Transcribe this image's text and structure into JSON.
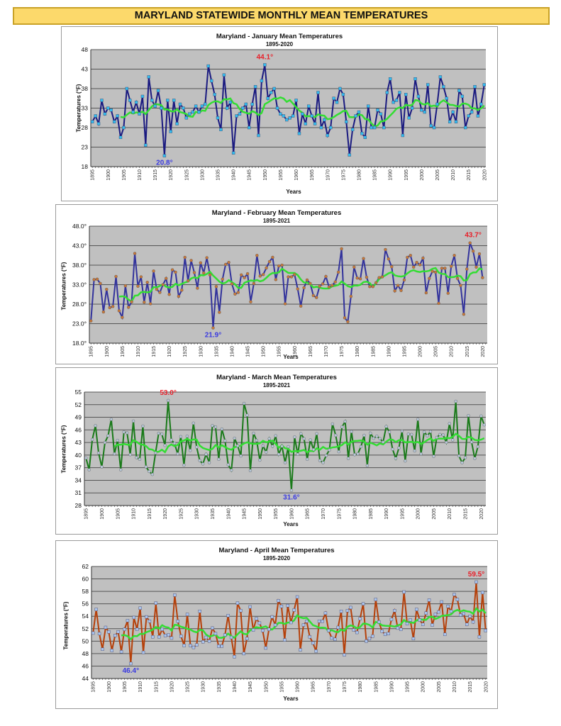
{
  "page_title": "MARYLAND STATEWIDE MONTHLY MEAN TEMPERATURES",
  "colors": {
    "banner_bg": "#fcd96b",
    "plot_bg": "#c0c0c0",
    "trend": "#33dd33",
    "max_label": "#e8202a",
    "min_label": "#3a3ae0"
  },
  "chart_data": [
    {
      "type": "line",
      "title": "Maryland - January Mean Temperatures",
      "subtitle": "1895-2020",
      "xlabel": "Years",
      "ylabel": "Temperatures (°F)",
      "ylim": [
        18,
        48
      ],
      "yticks": [
        18,
        23,
        28,
        33,
        38,
        43,
        48
      ],
      "ytick_labels": [
        "18",
        "23",
        "28",
        "33",
        "38",
        "43",
        "48"
      ],
      "xlim": [
        1895,
        2020
      ],
      "xticks": [
        "1895",
        "1900",
        "1905",
        "1910",
        "1915",
        "1920",
        "1925",
        "1930",
        "1935",
        "1940",
        "1945",
        "1950",
        "1955",
        "1960",
        "1965",
        "1970",
        "1975",
        "1980",
        "1985",
        "1990",
        "1995",
        "2000",
        "2005",
        "2010",
        "2015",
        "2020"
      ],
      "grid": true,
      "line_color": "#1a1a80",
      "marker_color": "#33bbee",
      "marker_shape": "square",
      "start_year": 1895,
      "values": [
        29.5,
        31,
        29,
        35,
        31.5,
        33,
        32.5,
        29.5,
        31,
        25.5,
        28,
        38,
        35,
        32,
        34.5,
        31.5,
        36,
        23.5,
        41,
        35,
        33.5,
        37.5,
        33,
        20.8,
        35,
        27,
        35,
        29,
        34,
        33,
        30.5,
        31.5,
        32,
        33.5,
        32,
        33.5,
        34,
        43.8,
        40,
        36.5,
        30.5,
        27.5,
        41.5,
        33,
        34.5,
        21.5,
        31,
        31.5,
        33,
        34,
        28,
        34,
        38.5,
        26,
        40,
        44.1,
        35.5,
        37,
        38,
        33,
        31.5,
        31,
        30,
        30.5,
        31,
        35,
        26.5,
        31.5,
        29,
        33.5,
        31,
        29,
        37,
        28,
        30,
        26,
        28,
        35.5,
        34.5,
        38,
        36.5,
        29.5,
        21,
        27.5,
        31,
        32,
        26.5,
        25.5,
        33.5,
        28,
        28,
        32.5,
        31.5,
        28,
        37,
        40.5,
        34.5,
        35,
        37,
        26,
        36.5,
        30.5,
        33,
        40.5,
        36,
        32.5,
        32,
        39,
        28.5,
        28,
        34,
        41,
        38.5,
        35.5,
        29.5,
        32,
        29.5,
        37.5,
        36,
        28,
        31,
        32,
        38.5,
        31,
        34,
        39
      ],
      "trend_window": 10,
      "annotations": [
        {
          "label": "44.1°",
          "year": 1950,
          "value": 44.1,
          "kind": "max"
        },
        {
          "label": "20.8°",
          "year": 1918,
          "value": 20.8,
          "kind": "min"
        }
      ]
    },
    {
      "type": "line",
      "title": "Maryland - February Mean Temperatures",
      "subtitle": "1895-2021",
      "xlabel": "Years",
      "ylabel": "Temperatures (°F)",
      "ylim": [
        18,
        48
      ],
      "yticks": [
        18,
        23,
        28,
        33,
        38,
        43,
        48
      ],
      "ytick_labels": [
        "18.0°",
        "23.0°",
        "28.0°",
        "33.0°",
        "38.0°",
        "43.0°",
        "48.0°"
      ],
      "xlim": [
        1895,
        2021
      ],
      "xticks": [
        "1895",
        "1900",
        "1905",
        "1910",
        "1915",
        "1920",
        "1925",
        "1930",
        "1935",
        "1940",
        "1945",
        "1950",
        "1955",
        "1960",
        "1965",
        "1970",
        "1975",
        "1980",
        "1985",
        "1990",
        "1995",
        "2000",
        "2005",
        "2010",
        "2015",
        "2020"
      ],
      "grid": true,
      "line_color": "#33339c",
      "marker_color": "#c8783a",
      "marker_shape": "circle",
      "start_year": 1895,
      "values": [
        23.7,
        34.3,
        34.4,
        33.3,
        26,
        31.8,
        27.1,
        27.4,
        35.1,
        26.3,
        24.6,
        32.7,
        27.2,
        28.6,
        41,
        32.6,
        35,
        28.5,
        33.6,
        28.1,
        36.5,
        31.8,
        31,
        33,
        34.6,
        30.5,
        36.8,
        36.2,
        30,
        31.6,
        40,
        34,
        39.2,
        36.1,
        32.1,
        38.6,
        36,
        39.9,
        35.5,
        21.9,
        32.5,
        25.9,
        34.4,
        38.2,
        38.7,
        33.2,
        30.6,
        31,
        35.5,
        34.8,
        35.8,
        28.6,
        33.3,
        40.5,
        35.2,
        35.6,
        37.3,
        38.9,
        40,
        34.3,
        37.8,
        38,
        28.1,
        35,
        35,
        35.6,
        31.9,
        27.5,
        32.2,
        34.2,
        33.3,
        30.2,
        29.7,
        32.6,
        33.2,
        35.1,
        32.4,
        32.8,
        33.7,
        36.2,
        42.2,
        24.5,
        23.5,
        30,
        37.5,
        34.7,
        34.5,
        39.7,
        34.9,
        32.5,
        32.5,
        33.5,
        34.8,
        35,
        42,
        39.6,
        37.6,
        31.4,
        32.8,
        31.5,
        34.2,
        40,
        40.5,
        37.5,
        38.7,
        38.1,
        39.8,
        30.9,
        34.6,
        36.4,
        36.2,
        28.2,
        37.2,
        37.2,
        30.8,
        37.7,
        40.5,
        34.6,
        32.8,
        25.4,
        37,
        43.7,
        41.6,
        37.5,
        40.9,
        34.8
      ],
      "trend_window": 10,
      "annotations": [
        {
          "label": "43.7°",
          "year": 2017,
          "value": 43.7,
          "kind": "max"
        },
        {
          "label": "21.9°",
          "year": 1934,
          "value": 21.9,
          "kind": "min"
        }
      ]
    },
    {
      "type": "line",
      "title": "Maryland - March Mean Temperatures",
      "subtitle": "1895-2021",
      "xlabel": "Years",
      "ylabel": "Temperatures (°F)",
      "ylim": [
        28,
        55
      ],
      "yticks": [
        28,
        31,
        34,
        37,
        40,
        43,
        46,
        49,
        52,
        55
      ],
      "ytick_labels": [
        "28",
        "31",
        "34",
        "37",
        "40",
        "43",
        "46",
        "49",
        "52",
        "55"
      ],
      "xlim": [
        1895,
        2021
      ],
      "xticks": [
        "1895",
        "1900",
        "1905",
        "1910",
        "1915",
        "1920",
        "1925",
        "1930",
        "1935",
        "1940",
        "1945",
        "1950",
        "1955",
        "1960",
        "1965",
        "1970",
        "1975",
        "1980",
        "1985",
        "1990",
        "1995",
        "2000",
        "2005",
        "2010",
        "2015",
        "2020"
      ],
      "grid": true,
      "line_color": "#1a7a1a",
      "marker_color": "#b8c8d8",
      "marker_shape": "circle",
      "start_year": 1895,
      "values": [
        39.3,
        36.5,
        43.7,
        47,
        40.5,
        37.2,
        43,
        44.6,
        48.5,
        40.3,
        43.5,
        36.5,
        45.5,
        45.3,
        40.1,
        48.1,
        39.4,
        39,
        46.9,
        37.2,
        36.1,
        35.4,
        40.5,
        45.2,
        45,
        42.3,
        53,
        43.6,
        42.8,
        40.3,
        44.4,
        37.6,
        44.5,
        41.1,
        47.6,
        41.9,
        38.7,
        37.9,
        40.2,
        38.2,
        47,
        46.7,
        39,
        46.2,
        43.4,
        37.7,
        36.4,
        44,
        42.2,
        39.8,
        52.3,
        49.5,
        36.3,
        45.2,
        43.5,
        38.8,
        42.2,
        40.7,
        43.9,
        42.1,
        44.6,
        40.2,
        42.1,
        38.2,
        42,
        31.6,
        44.3,
        40.2,
        45.1,
        43.9,
        39,
        43.6,
        41.3,
        45.1,
        38.7,
        38.2,
        39.9,
        41.2,
        47.4,
        44.7,
        40.8,
        46.7,
        48,
        39.2,
        45.6,
        40.1,
        40.3,
        42,
        44.7,
        37.5,
        45.2,
        44,
        44.5,
        43.9,
        43.1,
        46.8,
        45.5,
        41.4,
        39.2,
        41.7,
        45.7,
        38.6,
        45,
        44.9,
        41,
        48.5,
        40.3,
        45.5,
        44.6,
        45.6,
        39.7,
        44.2,
        44.9,
        44.8,
        43,
        47.5,
        43.6,
        52.8,
        39.8,
        38.2,
        39.4,
        49.4,
        43.1,
        39.2,
        42,
        49.3,
        47.2
      ],
      "trend_window": 10,
      "annotations": [
        {
          "label": "53.0°",
          "year": 1921,
          "value": 53.0,
          "kind": "max"
        },
        {
          "label": "31.6°",
          "year": 1960,
          "value": 31.6,
          "kind": "min"
        }
      ]
    },
    {
      "type": "line",
      "title": "Maryland - April Mean Temperatures",
      "subtitle": "1895-2020",
      "xlabel": "Years",
      "ylabel": "Temperatures (°F)",
      "ylim": [
        44,
        62
      ],
      "yticks": [
        44,
        46,
        48,
        50,
        52,
        54,
        56,
        58,
        60,
        62
      ],
      "ytick_labels": [
        "44",
        "46",
        "48",
        "50",
        "52",
        "54",
        "56",
        "58",
        "60",
        "62"
      ],
      "xlim": [
        1895,
        2020
      ],
      "xticks": [
        "1895",
        "1900",
        "1905",
        "1910",
        "1915",
        "1920",
        "1925",
        "1930",
        "1935",
        "1940",
        "1945",
        "1950",
        "1955",
        "1960",
        "1965",
        "1970",
        "1975",
        "1980",
        "1985",
        "1990",
        "1995",
        "2000",
        "2005",
        "2010",
        "2015",
        "2020"
      ],
      "grid": true,
      "line_color": "#b5400a",
      "marker_color": "#aac4ee",
      "marker_shape": "square",
      "start_year": 1895,
      "values": [
        51.3,
        55.1,
        51.2,
        48.7,
        52.2,
        51.5,
        48.5,
        50.9,
        51.5,
        48.3,
        51.9,
        53.3,
        46.4,
        53.8,
        51.9,
        55.3,
        48.2,
        53.9,
        53.2,
        50.7,
        56.1,
        50.7,
        51.9,
        50.9,
        51,
        50.5,
        57.4,
        53.2,
        50.8,
        49.3,
        54.3,
        49.3,
        49,
        49.4,
        54.8,
        49.9,
        50.6,
        50,
        52.1,
        51.2,
        49.2,
        49.2,
        51,
        54.1,
        50.6,
        47.5,
        56.1,
        54.9,
        48,
        50.4,
        55.5,
        51.8,
        53.6,
        52.9,
        51.7,
        48.9,
        51.9,
        53.9,
        52.6,
        56.5,
        55.6,
        50.2,
        55.7,
        53,
        55,
        57.1,
        48.6,
        52.6,
        53.2,
        50.7,
        49.7,
        48.4,
        53.2,
        53.2,
        54.5,
        51.7,
        50.5,
        50.3,
        52.2,
        54.8,
        47.8,
        54.9,
        55.4,
        51.8,
        51.4,
        53.6,
        56,
        50,
        50.4,
        50.8,
        56.7,
        53.1,
        51.6,
        51.1,
        51.2,
        53.5,
        54.9,
        52.1,
        51.9,
        57.9,
        52.8,
        53.4,
        50.4,
        55.1,
        53.4,
        52.7,
        54.5,
        56.6,
        52.6,
        54.3,
        54.7,
        56.3,
        51.1,
        55.6,
        54.8,
        57.5,
        56.7,
        54.2,
        54.4,
        52.7,
        54,
        53.1,
        59.5,
        50.7,
        57.8,
        51.7
      ],
      "trend_window": 10,
      "annotations": [
        {
          "label": "59.5°",
          "year": 2017,
          "value": 59.5,
          "kind": "max"
        },
        {
          "label": "46.4°",
          "year": 1907,
          "value": 46.4,
          "kind": "min"
        }
      ]
    }
  ]
}
